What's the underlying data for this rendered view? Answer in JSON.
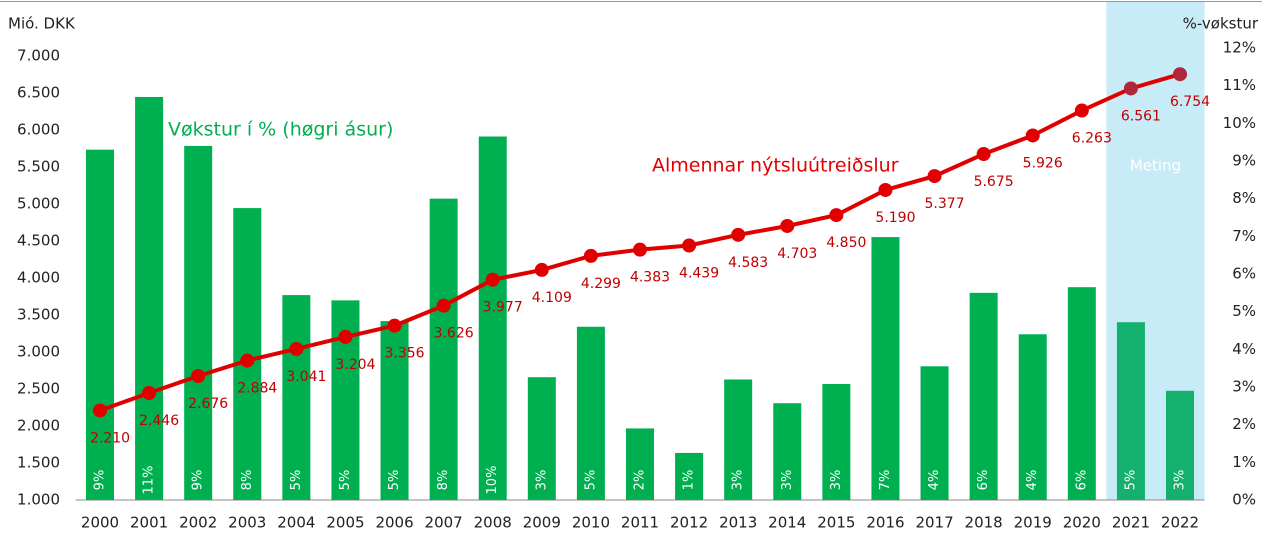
{
  "chart_data": {
    "type": "bar-line",
    "y_label": "Mió. DKK",
    "y2_label": "%-vøkstur",
    "categories": [
      "2000",
      "2001",
      "2002",
      "2003",
      "2004",
      "2005",
      "2006",
      "2007",
      "2008",
      "2009",
      "2010",
      "2011",
      "2012",
      "2013",
      "2014",
      "2015",
      "2016",
      "2017",
      "2018",
      "2019",
      "2020",
      "2021",
      "2022"
    ],
    "series": [
      {
        "name": "Vøkstur í % (høgri ásur)",
        "type": "bar",
        "axis": "y2",
        "color": "#00b050",
        "forecast_color": "#13b06e",
        "values": [
          9.3,
          10.7,
          9.4,
          7.75,
          5.44,
          5.3,
          4.75,
          8.0,
          9.65,
          3.26,
          4.6,
          1.9,
          1.25,
          3.2,
          2.57,
          3.08,
          6.98,
          3.55,
          5.5,
          4.4,
          5.65,
          4.72,
          2.9
        ],
        "value_labels": [
          "9%",
          "11%",
          "9%",
          "8%",
          "5%",
          "5%",
          "5%",
          "8%",
          "10%",
          "3%",
          "5%",
          "2%",
          "1%",
          "3%",
          "3%",
          "3%",
          "7%",
          "4%",
          "6%",
          "4%",
          "6%",
          "5%",
          "3%"
        ]
      },
      {
        "name": "Almennar nýtsluútreiðslur",
        "type": "line",
        "axis": "y",
        "color": "#e00000",
        "forecast_color": "#b0263a",
        "values": [
          2210,
          2446,
          2676,
          2884,
          3041,
          3204,
          3356,
          3626,
          3977,
          4109,
          4299,
          4383,
          4439,
          4583,
          4703,
          4850,
          5190,
          5377,
          5675,
          5926,
          6263,
          6561,
          6754
        ],
        "value_labels": [
          "2.210",
          "2.446",
          "2.676",
          "2.884",
          "3.041",
          "3.204",
          "3.356",
          "3.626",
          "3.977",
          "4.109",
          "4.299",
          "4.383",
          "4.439",
          "4.583",
          "4.703",
          "4.850",
          "5.190",
          "5.377",
          "5.675",
          "5.926",
          "6.263",
          "6.561",
          "6.754"
        ]
      }
    ],
    "forecast": {
      "label": "Meting",
      "from_index": 21,
      "color": "#c8ebf8"
    },
    "ylim": [
      1000,
      7000
    ],
    "yticks": [
      {
        "value": 1000,
        "label": "1.000"
      },
      {
        "value": 1500,
        "label": "1.500"
      },
      {
        "value": 2000,
        "label": "2.000"
      },
      {
        "value": 2500,
        "label": "2.500"
      },
      {
        "value": 3000,
        "label": "3.000"
      },
      {
        "value": 3500,
        "label": "3.500"
      },
      {
        "value": 4000,
        "label": "4.000"
      },
      {
        "value": 4500,
        "label": "4.500"
      },
      {
        "value": 5000,
        "label": "5.000"
      },
      {
        "value": 5500,
        "label": "5.500"
      },
      {
        "value": 6000,
        "label": "6.000"
      },
      {
        "value": 6500,
        "label": "6.500"
      },
      {
        "value": 7000,
        "label": "7.000"
      }
    ],
    "y2lim": [
      0,
      12
    ],
    "y2ticks": [
      {
        "value": 0,
        "label": "0%"
      },
      {
        "value": 1,
        "label": "1%"
      },
      {
        "value": 2,
        "label": "2%"
      },
      {
        "value": 3,
        "label": "3%"
      },
      {
        "value": 4,
        "label": "4%"
      },
      {
        "value": 5,
        "label": "5%"
      },
      {
        "value": 6,
        "label": "6%"
      },
      {
        "value": 7,
        "label": "7%"
      },
      {
        "value": 8,
        "label": "8%"
      },
      {
        "value": 9,
        "label": "9%"
      },
      {
        "value": 10,
        "label": "10%"
      },
      {
        "value": 11,
        "label": "11%"
      },
      {
        "value": 12,
        "label": "12%"
      }
    ],
    "grid": false
  }
}
